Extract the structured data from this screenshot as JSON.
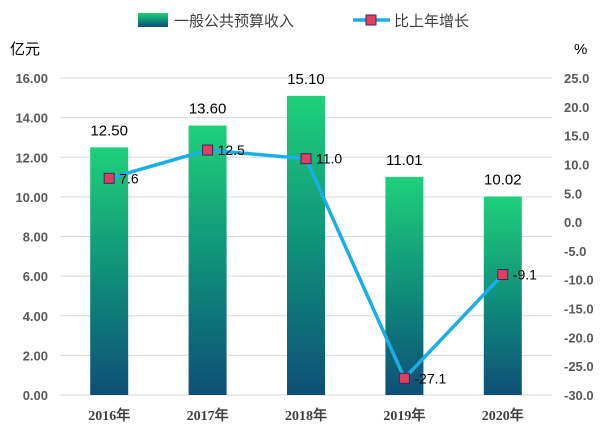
{
  "chart_data": {
    "type": "bar+line",
    "categories": [
      "2016年",
      "2017年",
      "2018年",
      "2019年",
      "2020年"
    ],
    "series": [
      {
        "name": "一般公共预算收入",
        "type": "bar",
        "axis": "left",
        "values": [
          12.5,
          13.6,
          15.1,
          11.01,
          10.02
        ],
        "labels": [
          "12.50",
          "13.60",
          "15.10",
          "11.01",
          "10.02"
        ]
      },
      {
        "name": "比上年增长",
        "type": "line",
        "axis": "right",
        "values": [
          7.6,
          12.5,
          11.0,
          -27.1,
          -9.1
        ],
        "labels": [
          "7.6",
          "12.5",
          "11.0",
          "-27.1",
          "-9.1"
        ]
      }
    ],
    "y_left": {
      "unit_label": "亿元",
      "ylim": [
        0,
        16
      ],
      "ticks": [
        "0.00",
        "2.00",
        "4.00",
        "6.00",
        "8.00",
        "10.00",
        "12.00",
        "14.00",
        "16.00"
      ]
    },
    "y_right": {
      "unit_label": "%",
      "ylim": [
        -30,
        25
      ],
      "ticks": [
        "-30.0",
        "-25.0",
        "-20.0",
        "-15.0",
        "-10.0",
        "-5.0",
        "0.0",
        "5.0",
        "10.0",
        "15.0",
        "20.0",
        "25.0"
      ]
    },
    "grid": true,
    "legend_position": "top",
    "colors": {
      "bar_top": "#1fd07a",
      "bar_mid": "#0f8a7a",
      "bar_bottom": "#0d4f77",
      "line": "#1aaee6",
      "marker_fill": "#e04060",
      "marker_stroke": "#3a2a5a",
      "grid": "#d9d9d9"
    }
  }
}
